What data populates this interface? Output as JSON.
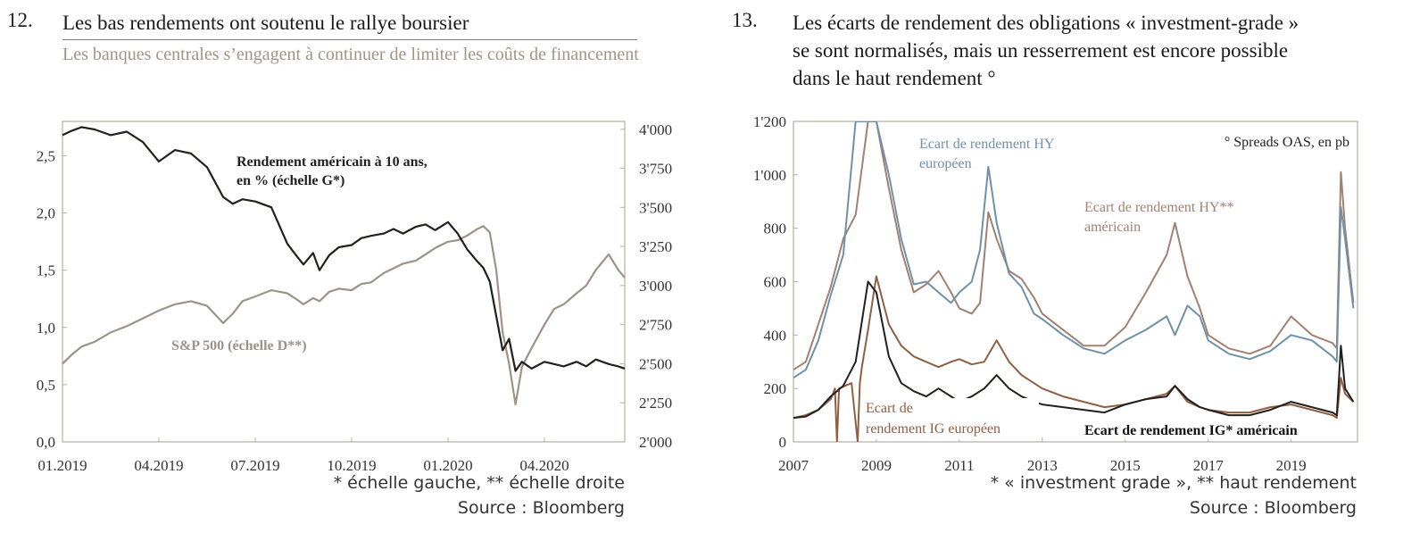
{
  "left": {
    "number": "12.",
    "title": "Les bas rendements ont soutenu le rallye boursier",
    "subtitle": "Les banques centrales s’engagent à continuer de limiter les coûts de financement",
    "footnote": "* échelle gauche, ** échelle droite",
    "source": "Source : Bloomberg"
  },
  "right": {
    "number": "13.",
    "title_lines": [
      "Les écarts de rendement des obligations « investment-grade »",
      "se sont normalisés, mais un resserrement est encore possible",
      "dans le haut rendement °"
    ],
    "footnote": "* « investment grade », ** haut rendement",
    "source": "Source : Bloomberg"
  },
  "chart_data": [
    {
      "type": "line",
      "x_tick_labels": [
        "01.2019",
        "04.2019",
        "07.2019",
        "10.2019",
        "01.2020",
        "04.2020"
      ],
      "y_left_ticks": [
        "0,0",
        "0,5",
        "1,0",
        "1,5",
        "2,0",
        "2,5"
      ],
      "y_left_range": [
        0,
        2.8
      ],
      "y_right_ticks": [
        "2'000",
        "2'250",
        "2'500",
        "2'750",
        "3'000",
        "3'250",
        "3'500",
        "3'750",
        "4'000"
      ],
      "y_right_range": [
        2000,
        4050
      ],
      "x_range_months": [
        0,
        17.5
      ],
      "annotations": [
        "Rendement américain à 10 ans,",
        "en % (échelle G*)",
        "S&P 500 (échelle D**)"
      ],
      "colors": {
        "yield": "#231f1c",
        "sp500": "#9e9287"
      },
      "series": [
        {
          "axis": "left",
          "x_months": [
            0,
            0.3,
            0.6,
            1.0,
            1.5,
            2.0,
            2.5,
            3.0,
            3.5,
            4.0,
            4.5,
            5.0,
            5.3,
            5.6,
            6.0,
            6.5,
            7.0,
            7.3,
            7.5,
            7.8,
            8.0,
            8.3,
            8.6,
            9.0,
            9.3,
            9.6,
            10.0,
            10.3,
            10.6,
            11.0,
            11.3,
            11.6,
            12.0,
            12.3,
            12.6,
            12.9,
            13.1,
            13.3,
            13.5,
            13.7,
            13.9,
            14.1,
            14.3,
            14.6,
            15.0,
            15.3,
            15.6,
            16.0,
            16.3,
            16.6,
            17.0,
            17.3,
            17.5
          ],
          "values": [
            2.68,
            2.72,
            2.75,
            2.73,
            2.68,
            2.71,
            2.62,
            2.45,
            2.55,
            2.52,
            2.4,
            2.14,
            2.08,
            2.12,
            2.1,
            2.05,
            1.73,
            1.62,
            1.55,
            1.65,
            1.5,
            1.63,
            1.7,
            1.72,
            1.78,
            1.8,
            1.82,
            1.86,
            1.82,
            1.88,
            1.9,
            1.85,
            1.92,
            1.82,
            1.68,
            1.58,
            1.52,
            1.4,
            1.1,
            0.8,
            0.9,
            0.62,
            0.7,
            0.64,
            0.7,
            0.68,
            0.66,
            0.7,
            0.66,
            0.72,
            0.68,
            0.66,
            0.64
          ]
        },
        {
          "axis": "right",
          "x_months": [
            0,
            0.3,
            0.6,
            1.0,
            1.5,
            2.0,
            2.5,
            3.0,
            3.5,
            4.0,
            4.5,
            5.0,
            5.3,
            5.6,
            6.0,
            6.5,
            7.0,
            7.3,
            7.5,
            7.8,
            8.0,
            8.3,
            8.6,
            9.0,
            9.3,
            9.6,
            10.0,
            10.3,
            10.6,
            11.0,
            11.3,
            11.6,
            12.0,
            12.3,
            12.6,
            12.9,
            13.1,
            13.3,
            13.5,
            13.7,
            13.9,
            14.1,
            14.3,
            14.6,
            15.0,
            15.3,
            15.6,
            16.0,
            16.3,
            16.6,
            17.0,
            17.3,
            17.5
          ],
          "values": [
            2500,
            2560,
            2610,
            2640,
            2700,
            2740,
            2790,
            2840,
            2880,
            2900,
            2870,
            2760,
            2820,
            2900,
            2930,
            2970,
            2950,
            2910,
            2880,
            2920,
            2900,
            2960,
            2980,
            2970,
            3010,
            3020,
            3080,
            3110,
            3140,
            3160,
            3200,
            3240,
            3280,
            3290,
            3320,
            3360,
            3380,
            3340,
            3100,
            2700,
            2500,
            2240,
            2480,
            2600,
            2750,
            2850,
            2880,
            2950,
            3000,
            3100,
            3200,
            3100,
            3050
          ]
        }
      ]
    },
    {
      "type": "line",
      "x_tick_labels": [
        "2007",
        "2009",
        "2011",
        "2013",
        "2015",
        "2017",
        "2019"
      ],
      "x_range": [
        2007,
        2020.6
      ],
      "y_ticks": [
        "0",
        "200",
        "400",
        "600",
        "800",
        "1'000",
        "1'200"
      ],
      "y_range": [
        0,
        1200
      ],
      "annotations": [
        "° Spreads OAS, en pb"
      ],
      "series": [
        {
          "name": "Ecart de rendement HY européen",
          "name_lines": [
            "Ecart de rendement HY",
            "européen"
          ],
          "color": "#6f91a8",
          "x": [
            2007.0,
            2007.3,
            2007.6,
            2007.9,
            2008.2,
            2008.5,
            2008.8,
            2009.0,
            2009.3,
            2009.6,
            2009.9,
            2010.2,
            2010.5,
            2010.8,
            2011.0,
            2011.3,
            2011.5,
            2011.7,
            2011.9,
            2012.2,
            2012.5,
            2012.8,
            2013.0,
            2013.5,
            2014.0,
            2014.5,
            2015.0,
            2015.5,
            2016.0,
            2016.2,
            2016.5,
            2016.8,
            2017.0,
            2017.5,
            2018.0,
            2018.5,
            2019.0,
            2019.5,
            2020.0,
            2020.1,
            2020.2,
            2020.3,
            2020.5
          ],
          "values": [
            240,
            270,
            380,
            550,
            700,
            1200,
            1200,
            1200,
            1000,
            760,
            590,
            600,
            560,
            520,
            560,
            600,
            720,
            1030,
            820,
            630,
            580,
            480,
            460,
            400,
            350,
            330,
            380,
            420,
            470,
            400,
            510,
            470,
            380,
            330,
            310,
            340,
            400,
            380,
            320,
            300,
            880,
            760,
            500
          ]
        },
        {
          "name": "Ecart de rendement HY** américain",
          "name_lines": [
            "Ecart de rendement HY**",
            "américain"
          ],
          "color": "#a18171",
          "x": [
            2007.0,
            2007.3,
            2007.6,
            2007.9,
            2008.2,
            2008.5,
            2008.8,
            2009.0,
            2009.3,
            2009.6,
            2009.9,
            2010.2,
            2010.5,
            2010.8,
            2011.0,
            2011.3,
            2011.5,
            2011.7,
            2011.9,
            2012.2,
            2012.5,
            2012.8,
            2013.0,
            2013.5,
            2014.0,
            2014.5,
            2015.0,
            2015.5,
            2016.0,
            2016.2,
            2016.5,
            2016.8,
            2017.0,
            2017.5,
            2018.0,
            2018.5,
            2019.0,
            2019.5,
            2020.0,
            2020.1,
            2020.2,
            2020.3,
            2020.5
          ],
          "values": [
            270,
            300,
            440,
            580,
            760,
            850,
            1200,
            1200,
            950,
            720,
            560,
            590,
            640,
            560,
            500,
            480,
            520,
            860,
            760,
            640,
            610,
            540,
            480,
            420,
            360,
            360,
            430,
            560,
            700,
            820,
            620,
            500,
            400,
            350,
            330,
            360,
            470,
            400,
            370,
            350,
            1010,
            800,
            520
          ]
        },
        {
          "name": "Ecart de rendement IG européen",
          "name_lines": [
            "Ecart de",
            "rendement IG européen"
          ],
          "color": "#8f5f43",
          "x": [
            2007.0,
            2007.3,
            2007.6,
            2007.9,
            2008.0,
            2008.05,
            2008.1,
            2008.4,
            2008.55,
            2008.6,
            2008.65,
            2008.8,
            2009.0,
            2009.3,
            2009.6,
            2009.9,
            2010.2,
            2010.5,
            2010.8,
            2011.0,
            2011.3,
            2011.6,
            2011.9,
            2012.2,
            2012.5,
            2012.8,
            2013.0,
            2013.5,
            2014.0,
            2014.5,
            2015.0,
            2015.5,
            2016.0,
            2016.2,
            2016.5,
            2016.8,
            2017.0,
            2017.5,
            2018.0,
            2018.5,
            2019.0,
            2019.5,
            2020.0,
            2020.1,
            2020.2,
            2020.3,
            2020.5
          ],
          "values": [
            90,
            100,
            120,
            160,
            200,
            0,
            200,
            220,
            0,
            220,
            280,
            420,
            620,
            440,
            360,
            320,
            300,
            280,
            300,
            310,
            290,
            300,
            380,
            300,
            250,
            220,
            200,
            170,
            150,
            130,
            140,
            160,
            180,
            210,
            150,
            130,
            120,
            110,
            110,
            130,
            140,
            120,
            100,
            90,
            240,
            180,
            150
          ]
        },
        {
          "name": "Ecart de rendement IG* américain",
          "name_lines": [
            "Ecart de rendement IG* américain"
          ],
          "color": "#231f1c",
          "x": [
            2007.0,
            2007.3,
            2007.6,
            2007.9,
            2008.2,
            2008.5,
            2008.8,
            2009.0,
            2009.3,
            2009.6,
            2009.9,
            2010.2,
            2010.5,
            2010.8,
            2011.0,
            2011.3,
            2011.6,
            2011.9,
            2012.2,
            2012.5,
            2012.8,
            2013.0,
            2013.5,
            2014.0,
            2014.5,
            2015.0,
            2015.5,
            2016.0,
            2016.2,
            2016.5,
            2016.8,
            2017.0,
            2017.5,
            2018.0,
            2018.5,
            2019.0,
            2019.5,
            2020.0,
            2020.1,
            2020.2,
            2020.3,
            2020.5
          ],
          "values": [
            90,
            95,
            120,
            170,
            210,
            300,
            600,
            560,
            320,
            220,
            190,
            170,
            200,
            170,
            150,
            170,
            200,
            250,
            200,
            170,
            150,
            140,
            130,
            120,
            110,
            140,
            160,
            170,
            210,
            160,
            130,
            120,
            100,
            100,
            120,
            150,
            130,
            110,
            100,
            360,
            200,
            150
          ]
        }
      ]
    }
  ]
}
